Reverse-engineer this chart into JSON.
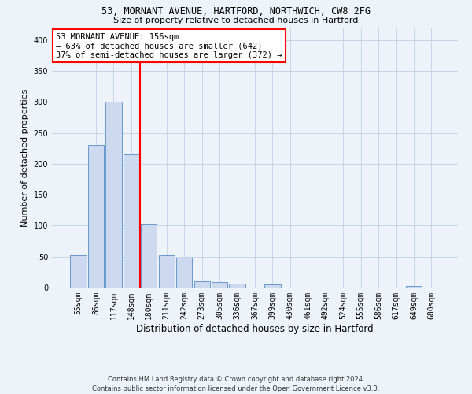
{
  "title1": "53, MORNANT AVENUE, HARTFORD, NORTHWICH, CW8 2FG",
  "title2": "Size of property relative to detached houses in Hartford",
  "xlabel": "Distribution of detached houses by size in Hartford",
  "ylabel": "Number of detached properties",
  "bar_color": "#ccd9ee",
  "bar_edge_color": "#6699cc",
  "grid_color": "#c8d4e8",
  "vline_color": "red",
  "vline_x_idx": 3.5,
  "annotation_line1": "53 MORNANT AVENUE: 156sqm",
  "annotation_line2": "← 63% of detached houses are smaller (642)",
  "annotation_line3": "37% of semi-detached houses are larger (372) →",
  "annotation_box_color": "white",
  "annotation_box_edge": "red",
  "categories": [
    "55sqm",
    "86sqm",
    "117sqm",
    "148sqm",
    "180sqm",
    "211sqm",
    "242sqm",
    "273sqm",
    "305sqm",
    "336sqm",
    "367sqm",
    "399sqm",
    "430sqm",
    "461sqm",
    "492sqm",
    "524sqm",
    "555sqm",
    "586sqm",
    "617sqm",
    "649sqm",
    "680sqm"
  ],
  "values": [
    52,
    230,
    300,
    215,
    103,
    52,
    49,
    10,
    9,
    6,
    0,
    5,
    0,
    0,
    0,
    0,
    0,
    0,
    0,
    3,
    0
  ],
  "ylim": [
    0,
    420
  ],
  "yticks": [
    0,
    50,
    100,
    150,
    200,
    250,
    300,
    350,
    400
  ],
  "footer": "Contains HM Land Registry data © Crown copyright and database right 2024.\nContains public sector information licensed under the Open Government Licence v3.0.",
  "background_color": "#eef2f9",
  "title1_fontsize": 8.5,
  "title2_fontsize": 8,
  "ylabel_fontsize": 8,
  "xlabel_fontsize": 8.5,
  "tick_fontsize": 7,
  "footer_fontsize": 6,
  "annot_fontsize": 7.5
}
